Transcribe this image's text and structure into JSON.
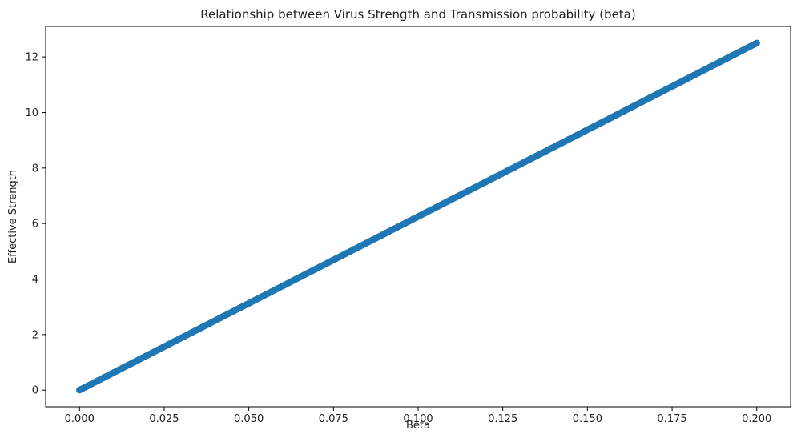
{
  "chart_data": {
    "type": "scatter",
    "title": "Relationship between Virus Strength and Transmission probability (beta)",
    "xlabel": "Beta",
    "ylabel": "Effective Strength",
    "xlim": [
      -0.01,
      0.21
    ],
    "ylim": [
      -0.6,
      13.1
    ],
    "xticks": [
      0.0,
      0.025,
      0.05,
      0.075,
      0.1,
      0.125,
      0.15,
      0.175,
      0.2
    ],
    "xtick_labels": [
      "0.000",
      "0.025",
      "0.050",
      "0.075",
      "0.100",
      "0.125",
      "0.150",
      "0.175",
      "0.200"
    ],
    "yticks": [
      0,
      2,
      4,
      6,
      8,
      10,
      12
    ],
    "ytick_labels": [
      "0",
      "2",
      "4",
      "6",
      "8",
      "10",
      "12"
    ],
    "grid": false,
    "color": "#1f77b4",
    "series": [
      {
        "x_range": [
          0.0,
          0.2
        ],
        "point_count": 400,
        "slope": 62.5,
        "intercept": 0
      }
    ]
  }
}
